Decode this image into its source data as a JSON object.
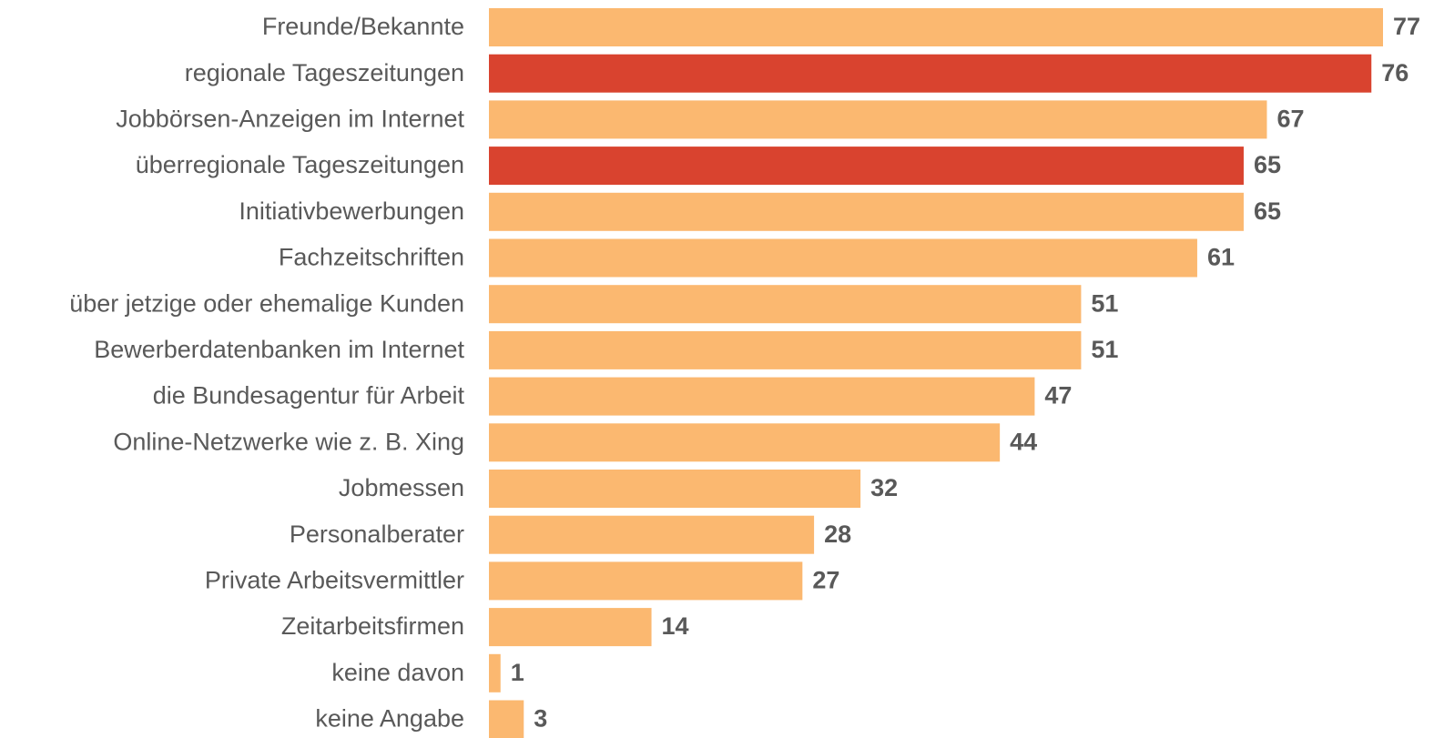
{
  "chart_data": {
    "type": "bar",
    "orientation": "horizontal",
    "categories": [
      "Freunde/Bekannte",
      "regionale Tageszeitungen",
      "Jobbörsen-Anzeigen im Internet",
      "überregionale Tageszeitungen",
      "Initiativbewerbungen",
      "Fachzeitschriften",
      "über jetzige oder ehemalige Kunden",
      "Bewerberdatenbanken im Internet",
      "die Bundesagentur für Arbeit",
      "Online-Netzwerke wie z. B. Xing",
      "Jobmessen",
      "Personalberater",
      "Private Arbeitsvermittler",
      "Zeitarbeitsfirmen",
      "keine davon",
      "keine Angabe"
    ],
    "values": [
      77,
      76,
      67,
      65,
      65,
      61,
      51,
      51,
      47,
      44,
      32,
      28,
      27,
      14,
      1,
      3
    ],
    "colors": [
      "#fbb870",
      "#d9432f",
      "#fbb870",
      "#d9432f",
      "#fbb870",
      "#fbb870",
      "#fbb870",
      "#fbb870",
      "#fbb870",
      "#fbb870",
      "#fbb870",
      "#fbb870",
      "#fbb870",
      "#fbb870",
      "#fbb870",
      "#fbb870"
    ]
  }
}
